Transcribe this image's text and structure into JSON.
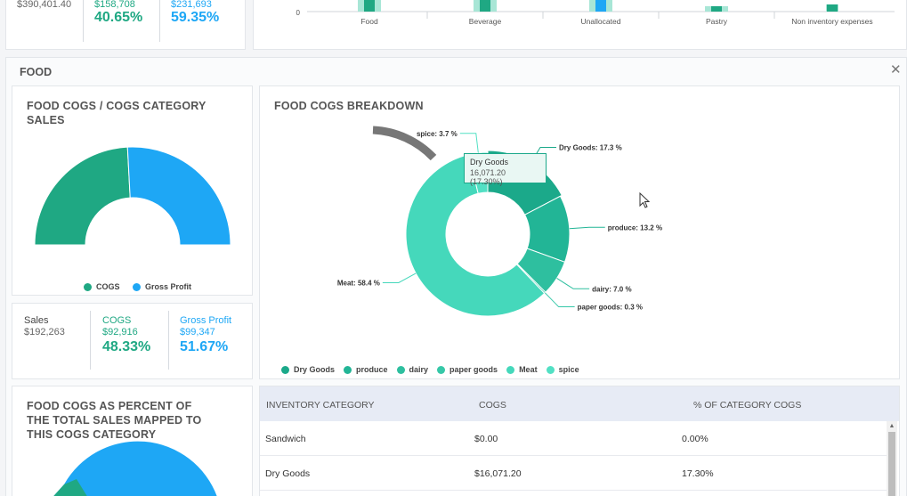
{
  "top_stats": {
    "total_amount": "$390,401.40",
    "cogs_amount": "$158,708",
    "cogs_pct": "40.65%",
    "gp_amount": "$231,693",
    "gp_pct": "59.35%"
  },
  "top_chart": {
    "zero_label": "0",
    "categories": [
      "Food",
      "Beverage",
      "Unallocated",
      "Pastry",
      "Non inventory expenses"
    ]
  },
  "panel": {
    "title": "FOOD",
    "close_icon": "close-icon"
  },
  "category_sales": {
    "title": "FOOD COGS / COGS CATEGORY SALES",
    "legend": [
      {
        "label": "COGS",
        "color": "#1fa883"
      },
      {
        "label": "Gross Profit",
        "color": "#1ea7f5"
      }
    ]
  },
  "stats": {
    "sales_label": "Sales",
    "sales_amount": "$192,263",
    "cogs_label": "COGS",
    "cogs_amount": "$92,916",
    "cogs_pct": "48.33%",
    "gp_label": "Gross Profit",
    "gp_amount": "$99,347",
    "gp_pct": "51.67%"
  },
  "percent_card": {
    "title": "FOOD COGS AS PERCENT OF THE TOTAL SALES MAPPED TO THIS COGS CATEGORY"
  },
  "breakdown": {
    "title": "FOOD COGS BREAKDOWN",
    "tooltip": {
      "title": "Dry Goods",
      "value": "16,071.20 (17.30%)"
    }
  },
  "chart_data": [
    {
      "type": "pie",
      "title": "FOOD COGS / COGS CATEGORY SALES",
      "categories": [
        "COGS",
        "Gross Profit"
      ],
      "values": [
        48.33,
        51.67
      ],
      "legend": "bottom"
    },
    {
      "type": "pie",
      "title": "FOOD COGS BREAKDOWN",
      "categories": [
        "Dry Goods",
        "produce",
        "dairy",
        "paper goods",
        "Meat",
        "spice"
      ],
      "values": [
        17.3,
        13.2,
        7.0,
        0.3,
        58.4,
        3.7
      ],
      "labels": [
        "Dry Goods: 17.3 %",
        "produce: 13.2 %",
        "dairy: 7.0 %",
        "paper goods: 0.3 %",
        "Meat: 58.4 %",
        "spice: 3.7 %"
      ],
      "colors": [
        "#1ba98a",
        "#22b596",
        "#2ebf9f",
        "#36c8a8",
        "#45d8bb",
        "#52e0c4"
      ],
      "legend": "bottom"
    }
  ],
  "table": {
    "headers": [
      "INVENTORY CATEGORY",
      "COGS",
      "% OF CATEGORY COGS"
    ],
    "rows": [
      [
        "Sandwich",
        "$0.00",
        "0.00%"
      ],
      [
        "Dry Goods",
        "$16,071.20",
        "17.30%"
      ]
    ]
  }
}
